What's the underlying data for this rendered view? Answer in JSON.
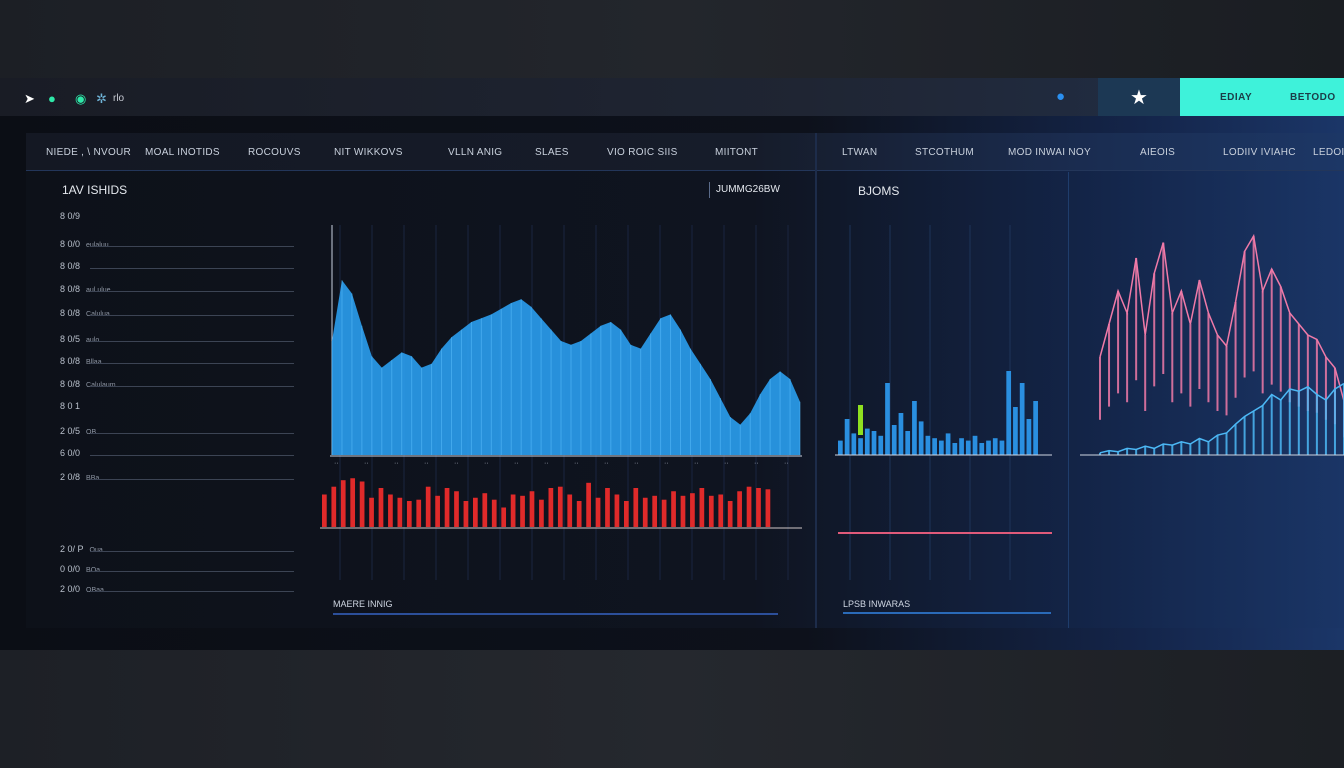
{
  "topbar": {
    "icons": [
      "bolt-icon",
      "green-circle-icon",
      "green-c-icon",
      "gear-icon"
    ],
    "label": "rlo",
    "star_icon": "star-icon",
    "dot_icon": "circle-icon",
    "buttons": [
      "EDIAY",
      "BETODO"
    ],
    "accent": "#3ef2da"
  },
  "header": {
    "columns": [
      "NIEDE , \\ NVOUR",
      "MOAL INOTIDS",
      "ROCOUVS",
      "NIT WIKKOVS",
      "VLLN ANIG",
      "SLAES",
      "VIO ROIC SIIS",
      "MIITONT",
      "LTWAN",
      "STCOTHUM",
      "MOD INWAI NOY",
      "AIEOIS",
      "LODIIV IVIAHC",
      "LEDOIN"
    ]
  },
  "left": {
    "title": "1AV ISHIDS",
    "subtitle": "JUMMG26BW",
    "rows": [
      {
        "label": "8 0/9",
        "note": ""
      },
      {
        "label": "8 0/0",
        "note": "eulaluu"
      },
      {
        "label": "8 0/8",
        "note": ""
      },
      {
        "label": "8 0/8",
        "note": "aul ulue"
      },
      {
        "label": "8 0/8",
        "note": "Calulua"
      },
      {
        "label": "8 0/5",
        "note": "aulo"
      },
      {
        "label": "8 0/8",
        "note": "Bllaa"
      },
      {
        "label": "8 0/8",
        "note": "Calulaum"
      },
      {
        "label": "8 0 1",
        "note": ""
      },
      {
        "label": "2 0/5",
        "note": "OB"
      },
      {
        "label": "6 0/0",
        "note": ""
      },
      {
        "label": "2 0/8",
        "note": "BBa"
      },
      {
        "label": "2 0/ P",
        "note": "Oua"
      },
      {
        "label": "0 0/0",
        "note": "BOa"
      },
      {
        "label": "2 0/0",
        "note": "OBaa"
      }
    ],
    "footer": "MAERE INNIG"
  },
  "right": {
    "title": "BJOMS",
    "footer": "LPSB INWARAS"
  },
  "chart_data": [
    {
      "type": "area",
      "color": "#2a9ff0",
      "values": [
        60,
        92,
        85,
        68,
        52,
        46,
        50,
        54,
        52,
        46,
        48,
        56,
        62,
        66,
        70,
        72,
        74,
        77,
        80,
        82,
        78,
        72,
        66,
        60,
        58,
        60,
        64,
        68,
        70,
        66,
        58,
        56,
        64,
        72,
        74,
        66,
        56,
        48,
        40,
        30,
        20,
        16,
        22,
        32,
        40,
        44,
        40,
        28
      ]
    },
    {
      "type": "bar",
      "color": "#e02a2a",
      "values": [
        50,
        62,
        72,
        75,
        70,
        45,
        60,
        50,
        45,
        40,
        42,
        62,
        48,
        60,
        55,
        40,
        45,
        52,
        42,
        30,
        50,
        48,
        55,
        42,
        60,
        62,
        50,
        40,
        68,
        45,
        60,
        50,
        40,
        60,
        45,
        48,
        42,
        55,
        48,
        52,
        60,
        48,
        50,
        40,
        55,
        62,
        60,
        58
      ]
    },
    {
      "type": "bar",
      "color": "#2a8fe0",
      "values": [
        12,
        30,
        18,
        14,
        22,
        20,
        16,
        60,
        25,
        35,
        20,
        45,
        28,
        16,
        14,
        12,
        18,
        10,
        14,
        12,
        16,
        10,
        12,
        14,
        12,
        70,
        40,
        60,
        30,
        45
      ]
    },
    {
      "type": "line",
      "series": [
        {
          "color": "#f07aa8",
          "values": [
            40,
            55,
            70,
            60,
            85,
            50,
            78,
            92,
            60,
            70,
            55,
            75,
            60,
            50,
            45,
            65,
            88,
            95,
            70,
            80,
            72,
            60,
            55,
            50,
            48,
            40,
            35,
            20
          ]
        },
        {
          "color": "#4cb8f5",
          "values": [
            2,
            4,
            3,
            6,
            5,
            8,
            6,
            10,
            9,
            12,
            10,
            15,
            12,
            18,
            20,
            28,
            35,
            40,
            45,
            55,
            50,
            60,
            58,
            62,
            55,
            50,
            60,
            65
          ]
        }
      ]
    }
  ]
}
